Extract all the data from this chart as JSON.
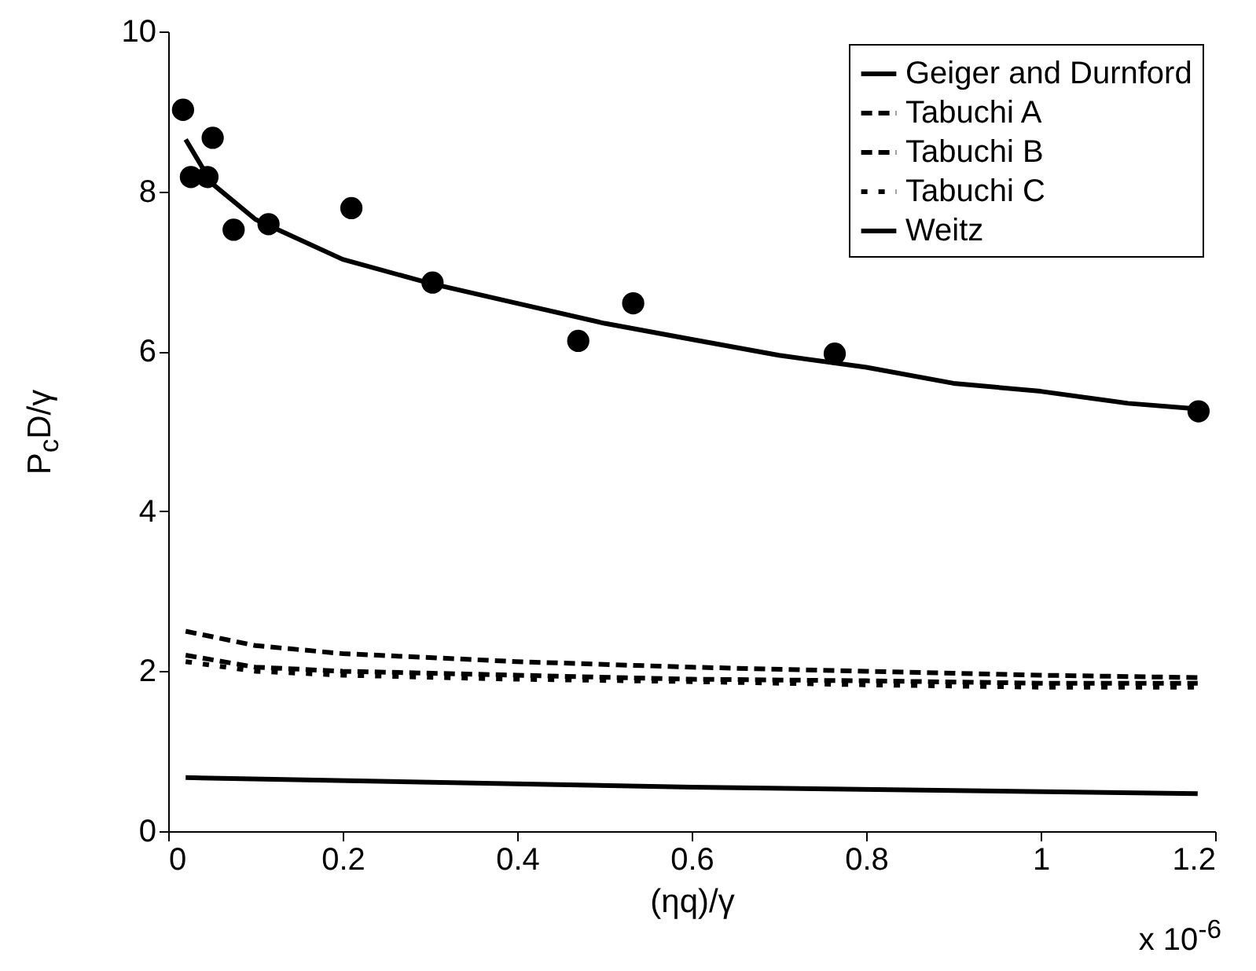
{
  "chart_data": {
    "type": "line",
    "xlabel": "(ηq)/γ",
    "ylabel": "P$_{c}$D/γ",
    "annotations": [
      "x 10$^{-6}$"
    ],
    "xlim": [
      0,
      1.2
    ],
    "xticks": [
      0,
      0.2,
      0.4,
      0.6,
      0.8,
      1,
      1.2
    ],
    "ylim": [
      0,
      10
    ],
    "yticks": [
      0,
      2,
      4,
      6,
      8,
      10
    ],
    "grid": false,
    "legend": "top right",
    "series": [
      {
        "name": "Geiger and Durnford",
        "type": "scatter",
        "marker": "circle",
        "color": "#000000",
        "x": [
          0.017,
          0.026,
          0.045,
          0.051,
          0.075,
          0.115,
          0.21,
          0.303,
          0.47,
          0.533,
          0.764,
          1.181
        ],
        "values": [
          9.02,
          8.18,
          8.18,
          8.67,
          7.52,
          7.59,
          7.79,
          6.86,
          6.13,
          6.6,
          5.97,
          5.25
        ]
      },
      {
        "line_style": "solid",
        "color": "#000000",
        "x": [
          0.02,
          0.05,
          0.1,
          0.2,
          0.3,
          0.4,
          0.5,
          0.6,
          0.7,
          0.8,
          0.9,
          1.0,
          1.1,
          1.18
        ],
        "values": [
          8.65,
          8.1,
          7.65,
          7.15,
          6.85,
          6.6,
          6.35,
          6.15,
          5.95,
          5.8,
          5.6,
          5.5,
          5.35,
          5.28
        ]
      },
      {
        "name": "Tabuchi A",
        "line_style": "dashed",
        "color": "#000000",
        "x": [
          0.02,
          0.1,
          0.2,
          0.4,
          0.6,
          0.8,
          1.0,
          1.18
        ],
        "values": [
          2.5,
          2.32,
          2.22,
          2.12,
          2.05,
          2.0,
          1.95,
          1.92
        ]
      },
      {
        "name": "Tabuchi B",
        "line_style": "dashed",
        "color": "#000000",
        "x": [
          0.02,
          0.1,
          0.2,
          0.4,
          0.6,
          0.8,
          1.0,
          1.18
        ],
        "values": [
          2.2,
          2.05,
          2.0,
          1.95,
          1.9,
          1.88,
          1.85,
          1.85
        ]
      },
      {
        "name": "Tabuchi C",
        "line_style": "dotted",
        "color": "#000000",
        "x": [
          0.02,
          0.1,
          0.2,
          0.4,
          0.6,
          0.8,
          1.0,
          1.18
        ],
        "values": [
          2.12,
          2.0,
          1.95,
          1.9,
          1.87,
          1.83,
          1.8,
          1.8
        ]
      },
      {
        "name": "Weitz",
        "line_style": "solid",
        "color": "#000000",
        "x": [
          0.02,
          0.6,
          1.18
        ],
        "values": [
          0.67,
          0.55,
          0.47
        ]
      }
    ]
  }
}
